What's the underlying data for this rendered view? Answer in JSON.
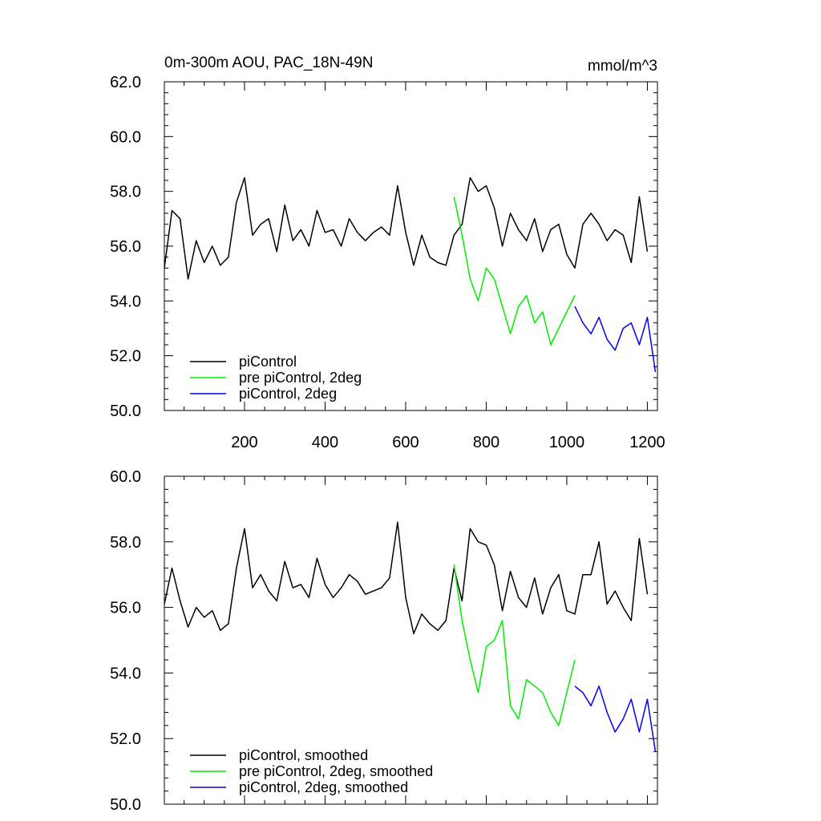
{
  "chart_data": [
    {
      "type": "line",
      "title": "0m-300m AOU, PAC_18N-49N",
      "units": "mmol/m^3",
      "xlim": [
        1,
        1225
      ],
      "ylim": [
        50,
        62
      ],
      "x_ticks": [
        200,
        400,
        600,
        800,
        1000,
        1200
      ],
      "x_tick_labels": [
        "200",
        "400",
        "600",
        "800",
        "1000",
        "1200"
      ],
      "y_ticks": [
        50,
        52,
        54,
        56,
        58,
        60,
        62
      ],
      "y_tick_labels": [
        "50.0",
        "52.0",
        "54.0",
        "56.0",
        "58.0",
        "60.0",
        "62.0"
      ],
      "legend_position": "bottom-left",
      "series": [
        {
          "name": "piControl",
          "color": "#000000",
          "x": [
            1,
            20,
            40,
            60,
            80,
            100,
            120,
            140,
            160,
            180,
            200,
            220,
            240,
            260,
            280,
            300,
            320,
            340,
            360,
            380,
            400,
            420,
            440,
            460,
            480,
            500,
            520,
            540,
            560,
            580,
            600,
            620,
            640,
            660,
            680,
            700,
            720,
            740,
            760,
            780,
            800,
            820,
            840,
            860,
            880,
            900,
            920,
            940,
            960,
            980,
            1000,
            1020,
            1040,
            1060,
            1080,
            1100,
            1120,
            1140,
            1160,
            1180,
            1200
          ],
          "y": [
            55.2,
            57.3,
            57.0,
            54.8,
            56.2,
            55.4,
            56.0,
            55.3,
            55.6,
            57.6,
            58.5,
            56.4,
            56.8,
            57.0,
            55.8,
            57.5,
            56.2,
            56.6,
            56.0,
            57.3,
            56.5,
            56.6,
            56.0,
            57.0,
            56.5,
            56.2,
            56.5,
            56.7,
            56.4,
            58.2,
            56.5,
            55.3,
            56.4,
            55.6,
            55.4,
            55.3,
            56.4,
            56.8,
            58.5,
            58.0,
            58.2,
            57.4,
            56.0,
            57.2,
            56.6,
            56.2,
            57.0,
            55.8,
            56.6,
            56.8,
            55.7,
            55.2,
            56.8,
            57.2,
            56.8,
            56.2,
            56.6,
            56.4,
            55.4,
            57.8,
            55.8
          ]
        },
        {
          "name": "pre piControl, 2deg",
          "color": "#00ee00",
          "x": [
            720,
            740,
            760,
            780,
            800,
            820,
            840,
            860,
            880,
            900,
            920,
            940,
            960,
            980,
            1000,
            1020
          ],
          "y": [
            57.8,
            56.4,
            54.8,
            54.0,
            55.2,
            54.8,
            53.8,
            52.8,
            53.8,
            54.2,
            53.2,
            53.6,
            52.4,
            53.0,
            53.6,
            54.2
          ]
        },
        {
          "name": "piControl, 2deg",
          "color": "#0000ee",
          "x": [
            1020,
            1040,
            1060,
            1080,
            1100,
            1120,
            1140,
            1160,
            1180,
            1200,
            1220
          ],
          "y": [
            53.8,
            53.2,
            52.8,
            53.4,
            52.6,
            52.2,
            53.0,
            53.2,
            52.4,
            53.4,
            51.4
          ]
        }
      ]
    },
    {
      "type": "line",
      "xlim": [
        1,
        1225
      ],
      "ylim": [
        50,
        60
      ],
      "x_ticks": [
        200,
        400,
        600,
        800,
        1000,
        1200
      ],
      "x_tick_labels": [],
      "y_ticks": [
        50,
        52,
        54,
        56,
        58,
        60
      ],
      "y_tick_labels": [
        "50.0",
        "52.0",
        "54.0",
        "56.0",
        "58.0",
        "60.0"
      ],
      "legend_position": "bottom-left",
      "series": [
        {
          "name": "piControl, smoothed",
          "color": "#000000",
          "x": [
            1,
            20,
            40,
            60,
            80,
            100,
            120,
            140,
            160,
            180,
            200,
            220,
            240,
            260,
            280,
            300,
            320,
            340,
            360,
            380,
            400,
            420,
            440,
            460,
            480,
            500,
            520,
            540,
            560,
            580,
            600,
            620,
            640,
            660,
            680,
            700,
            720,
            740,
            760,
            780,
            800,
            820,
            840,
            860,
            880,
            900,
            920,
            940,
            960,
            980,
            1000,
            1020,
            1040,
            1060,
            1080,
            1100,
            1120,
            1140,
            1160,
            1180,
            1200
          ],
          "y": [
            56.1,
            57.2,
            56.2,
            55.4,
            56.0,
            55.7,
            55.9,
            55.3,
            55.5,
            57.2,
            58.4,
            56.6,
            57.0,
            56.5,
            56.2,
            57.4,
            56.6,
            56.7,
            56.3,
            57.5,
            56.7,
            56.3,
            56.6,
            57.0,
            56.8,
            56.4,
            56.5,
            56.6,
            56.9,
            58.6,
            56.3,
            55.2,
            55.8,
            55.5,
            55.3,
            55.6,
            57.2,
            56.2,
            58.4,
            58.0,
            57.9,
            57.3,
            55.9,
            57.1,
            56.3,
            56.0,
            56.9,
            55.8,
            56.6,
            57.0,
            55.9,
            55.8,
            57.0,
            57.0,
            58.0,
            56.1,
            56.5,
            56.0,
            55.6,
            58.1,
            56.4
          ]
        },
        {
          "name": "pre piControl, 2deg, smoothed",
          "color": "#00ee00",
          "x": [
            720,
            740,
            760,
            780,
            800,
            820,
            840,
            860,
            880,
            900,
            920,
            940,
            960,
            980,
            1000,
            1020
          ],
          "y": [
            57.3,
            55.6,
            54.4,
            53.4,
            54.8,
            55.0,
            55.6,
            53.0,
            52.6,
            53.8,
            53.6,
            53.4,
            52.8,
            52.4,
            53.4,
            54.4
          ]
        },
        {
          "name": "piControl, 2deg, smoothed",
          "color": "#0000ee",
          "x": [
            1020,
            1040,
            1060,
            1080,
            1100,
            1120,
            1140,
            1160,
            1180,
            1200,
            1220
          ],
          "y": [
            53.6,
            53.4,
            53.0,
            53.6,
            52.8,
            52.2,
            52.6,
            53.2,
            52.2,
            53.2,
            51.6
          ]
        }
      ]
    }
  ]
}
